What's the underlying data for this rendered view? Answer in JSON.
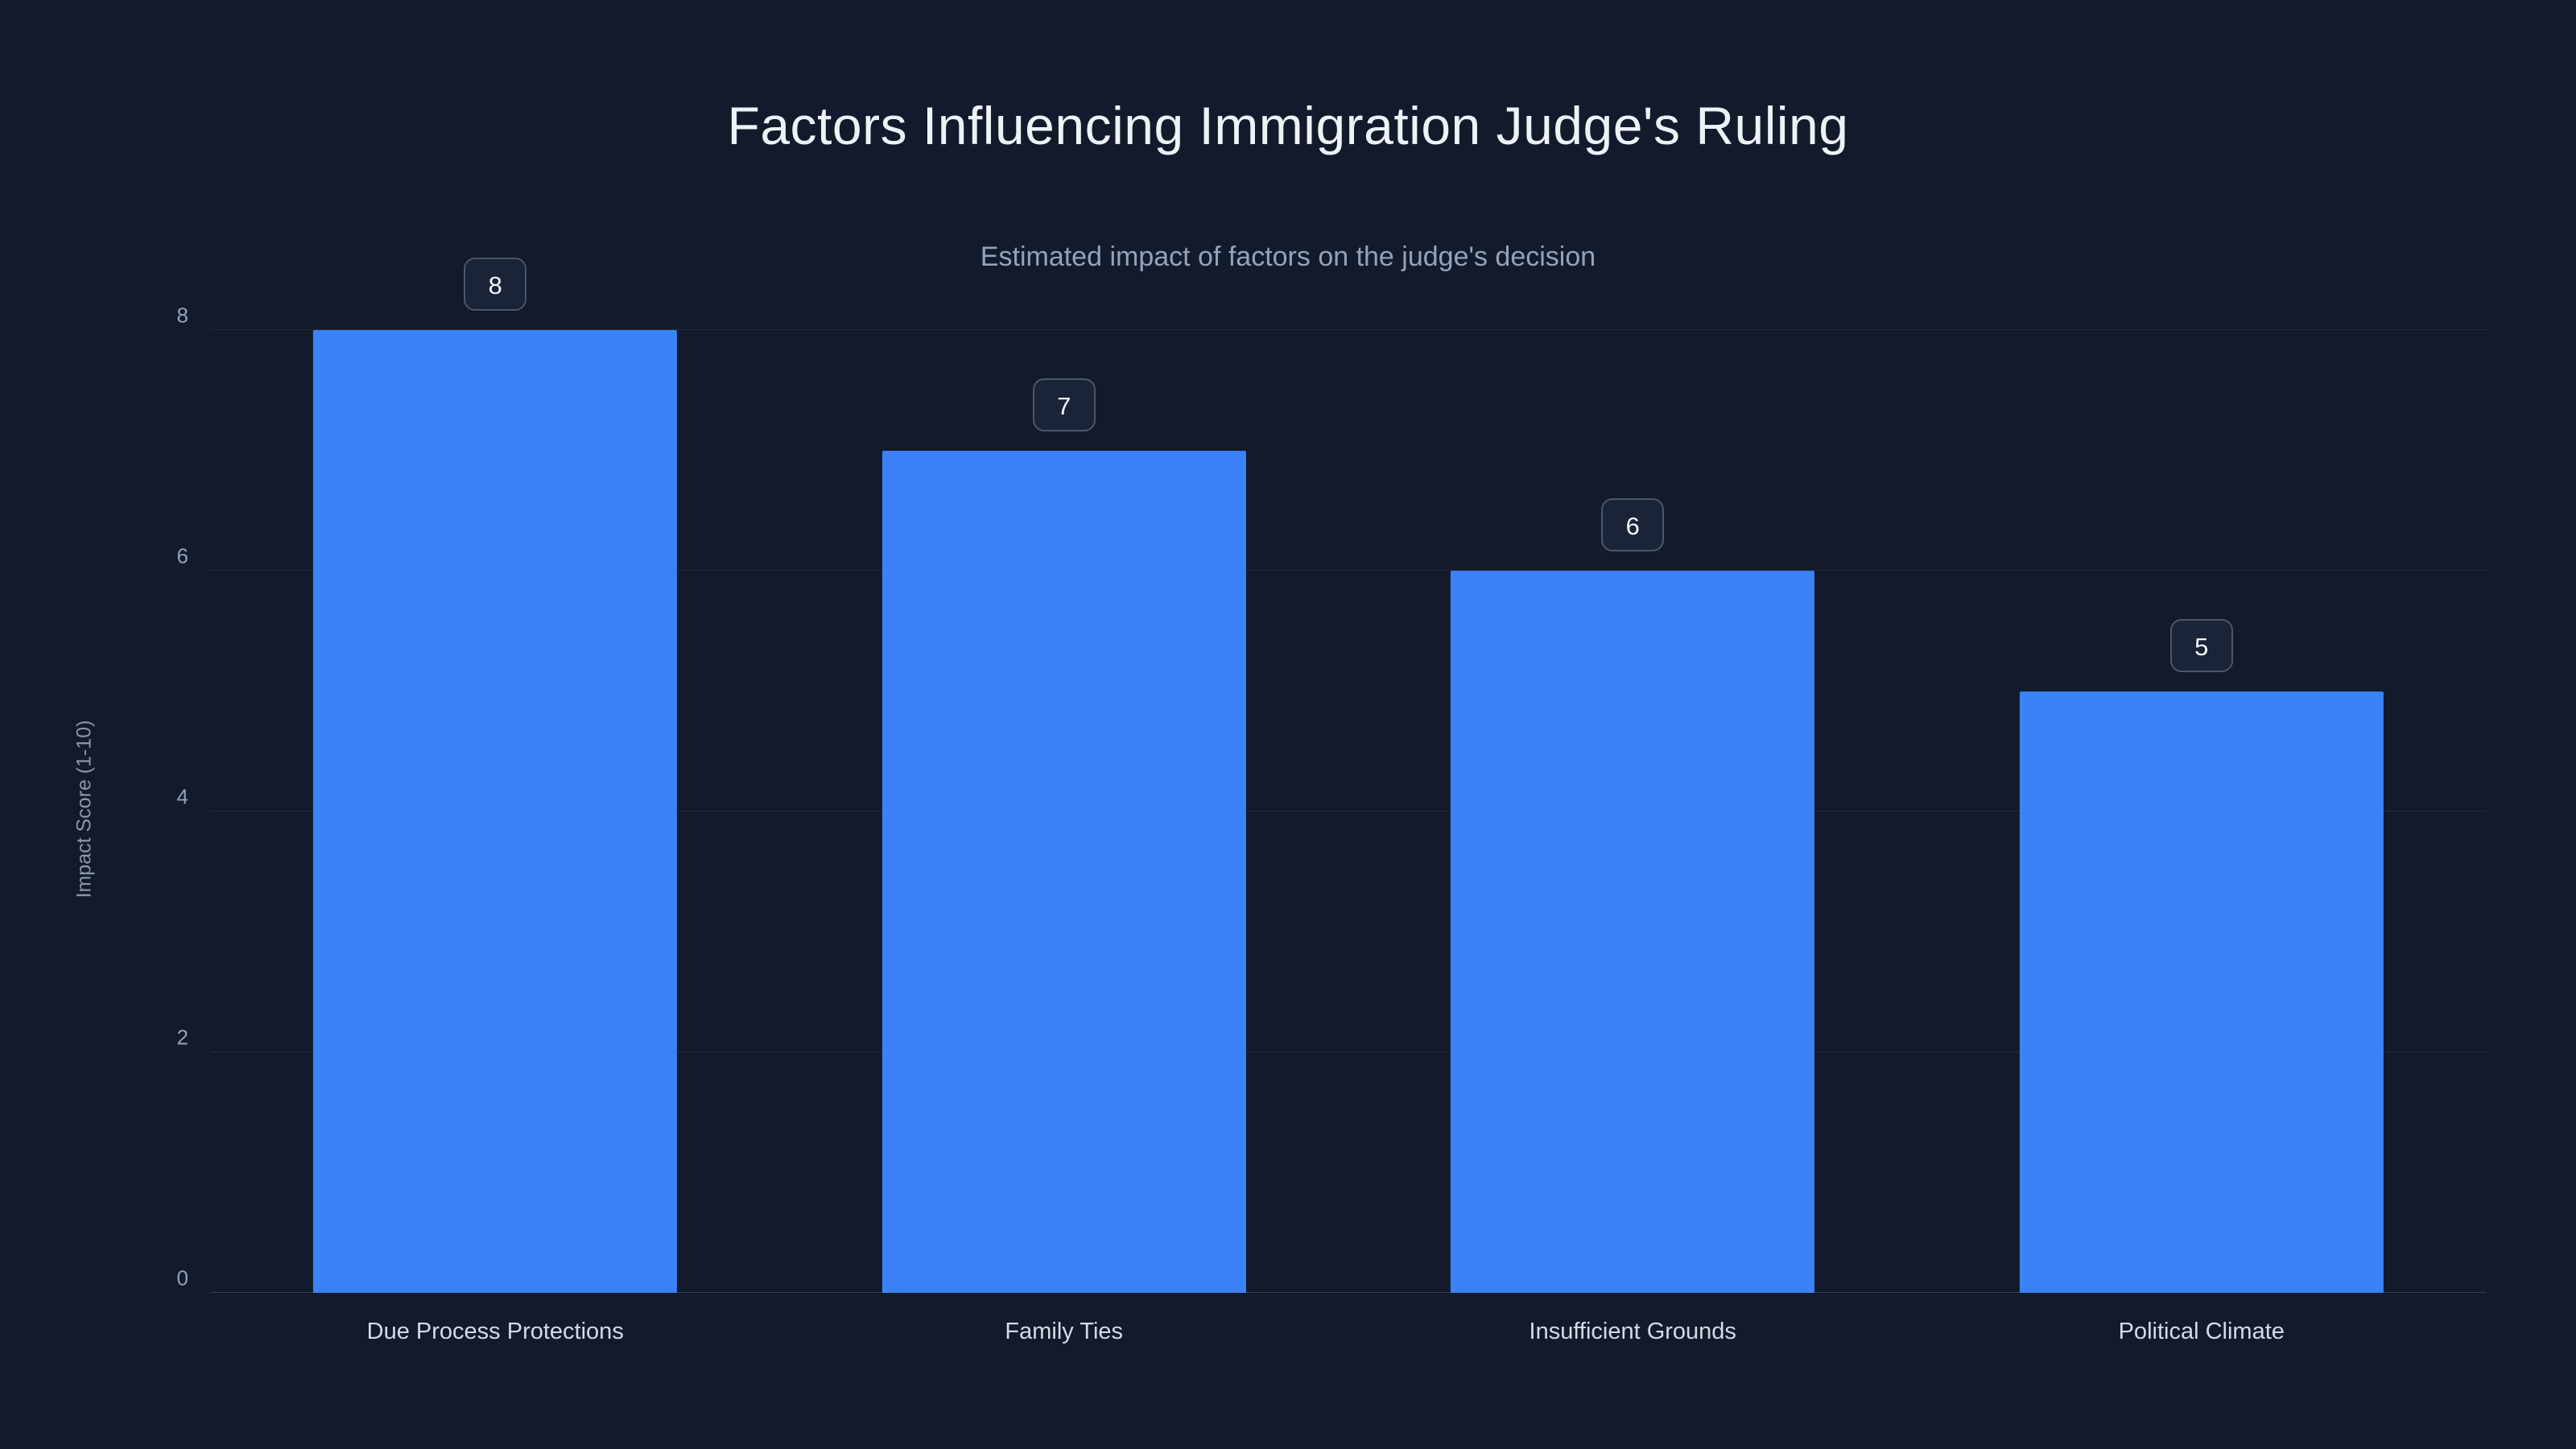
{
  "chart_data": {
    "type": "bar",
    "title": "Factors Influencing Immigration Judge's Ruling",
    "subtitle": "Estimated impact of factors on the judge's decision",
    "categories": [
      "Due Process Protections",
      "Family Ties",
      "Insufficient Grounds",
      "Political Climate"
    ],
    "values": [
      8,
      7,
      6,
      5
    ],
    "xlabel": "",
    "ylabel": "Impact Score (1-10)",
    "ylim": [
      0,
      8
    ],
    "yticks": [
      0,
      2,
      4,
      6,
      8
    ],
    "grid": true,
    "legend": false,
    "data_labels": [
      "8",
      "7",
      "6",
      "5"
    ],
    "colors": {
      "background": "#121a2b",
      "bar": "#3b82f6",
      "title_text": "#eef2f7",
      "subtitle_text": "#94a3b8",
      "axis_text": "#94a3b8",
      "category_text": "#d4dbe4",
      "badge_border": "#4b5768",
      "badge_background": "#1b2336"
    }
  }
}
